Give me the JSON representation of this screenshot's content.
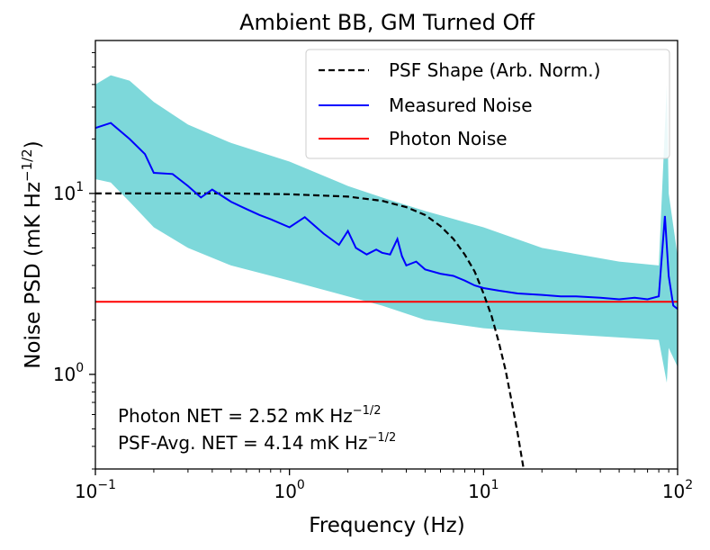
{
  "chart_data": {
    "type": "line",
    "title": "Ambient BB, GM Turned Off",
    "xlabel": "Frequency (Hz)",
    "ylabel": {
      "base": "Noise PSD (mK Hz",
      "sup": "−1/2",
      "close": ")"
    },
    "xscale": "log",
    "yscale": "log",
    "xlim": [
      0.1,
      100
    ],
    "ylim": [
      0.3,
      70
    ],
    "x_ticks": [
      {
        "value": 0.1,
        "base": "10",
        "exp": "−1"
      },
      {
        "value": 1,
        "base": "10",
        "exp": "0"
      },
      {
        "value": 10,
        "base": "10",
        "exp": "1"
      },
      {
        "value": 100,
        "base": "10",
        "exp": "2"
      }
    ],
    "y_ticks": [
      {
        "value": 1,
        "base": "10",
        "exp": "0"
      },
      {
        "value": 10,
        "base": "10",
        "exp": "1"
      }
    ],
    "legend_position": "top-right",
    "series": [
      {
        "name": "PSF Shape (Arb. Norm.)",
        "style": "dashed",
        "color": "#000000",
        "x": [
          0.1,
          0.2,
          0.3,
          0.5,
          1,
          2,
          3,
          4,
          5,
          6,
          7,
          8,
          9,
          10,
          11,
          12,
          13,
          14,
          15,
          16,
          16.6
        ],
        "y": [
          10.0,
          10.0,
          10.0,
          10.0,
          9.9,
          9.6,
          9.1,
          8.4,
          7.6,
          6.6,
          5.6,
          4.6,
          3.7,
          2.8,
          2.1,
          1.5,
          1.05,
          0.7,
          0.47,
          0.31,
          0.25
        ]
      },
      {
        "name": "Measured Noise",
        "style": "solid",
        "color": "#0000ff",
        "x": [
          0.1,
          0.12,
          0.15,
          0.18,
          0.2,
          0.25,
          0.3,
          0.35,
          0.4,
          0.5,
          0.6,
          0.7,
          0.8,
          1.0,
          1.2,
          1.5,
          1.8,
          2.0,
          2.2,
          2.5,
          2.8,
          3.0,
          3.3,
          3.6,
          3.8,
          4.0,
          4.5,
          5.0,
          6,
          7,
          8,
          9,
          10,
          12,
          15,
          20,
          25,
          30,
          40,
          50,
          60,
          70,
          80,
          86,
          90,
          95,
          100
        ],
        "y": [
          23,
          24.5,
          20,
          16.5,
          13,
          12.8,
          11,
          9.5,
          10.5,
          9.0,
          8.2,
          7.6,
          7.2,
          6.5,
          7.4,
          6.0,
          5.2,
          6.2,
          5.0,
          4.6,
          4.9,
          4.7,
          4.6,
          5.6,
          4.5,
          4.0,
          4.2,
          3.8,
          3.6,
          3.5,
          3.3,
          3.1,
          3.0,
          2.9,
          2.8,
          2.75,
          2.7,
          2.7,
          2.65,
          2.6,
          2.65,
          2.6,
          2.7,
          7.5,
          3.5,
          2.4,
          2.3
        ],
        "band": {
          "color": "#7dd8da",
          "x": [
            0.1,
            0.12,
            0.15,
            0.2,
            0.3,
            0.5,
            1,
            2,
            3,
            5,
            10,
            20,
            50,
            80,
            88,
            90,
            100
          ],
          "lower": [
            12,
            11.5,
            9,
            6.5,
            5.0,
            4.0,
            3.3,
            2.7,
            2.4,
            2.0,
            1.8,
            1.7,
            1.6,
            1.55,
            0.9,
            1.4,
            1.1
          ],
          "upper": [
            40,
            45,
            42,
            32,
            24,
            19,
            15,
            11,
            9.5,
            8.0,
            6.5,
            5.0,
            4.2,
            4.0,
            40,
            10,
            4.5
          ]
        }
      },
      {
        "name": "Photon Noise",
        "style": "solid",
        "color": "#ff0000",
        "x": [
          0.1,
          100
        ],
        "y": [
          2.52,
          2.52
        ]
      }
    ],
    "annotations": [
      {
        "text": "Photon NET = 2.52 mK Hz",
        "sup": "−1/2"
      },
      {
        "text": "PSF-Avg. NET = 4.14 mK Hz",
        "sup": "−1/2"
      }
    ]
  }
}
